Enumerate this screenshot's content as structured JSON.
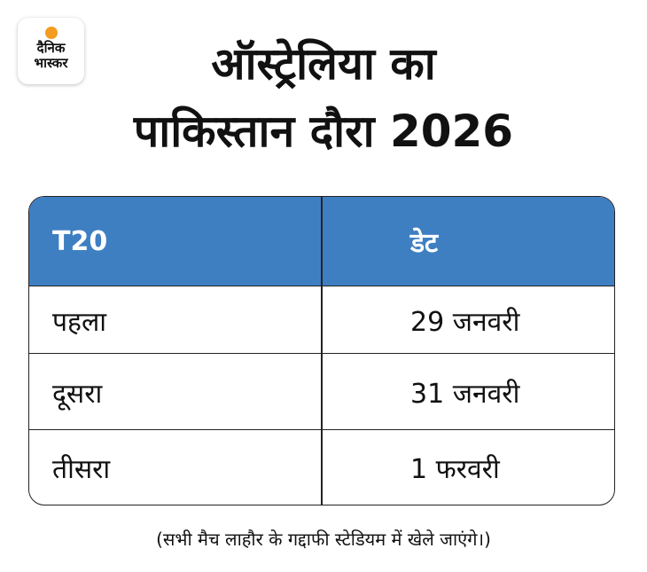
{
  "logo": {
    "line1": "दैनिक",
    "line2": "भास्कर"
  },
  "title": {
    "line1": "ऑस्ट्रेलिया का",
    "line2": "पाकिस्तान दौरा 2026"
  },
  "table": {
    "header": [
      "T20",
      "डेट"
    ],
    "rows": [
      [
        "पहला",
        "29 जनवरी"
      ],
      [
        "दूसरा",
        "31 जनवरी"
      ],
      [
        "तीसरा",
        "1 फरवरी"
      ]
    ]
  },
  "footnote": "(सभी मैच लाहौर के गद्दाफी स्टेडियम में खेले जाएंगे।)"
}
